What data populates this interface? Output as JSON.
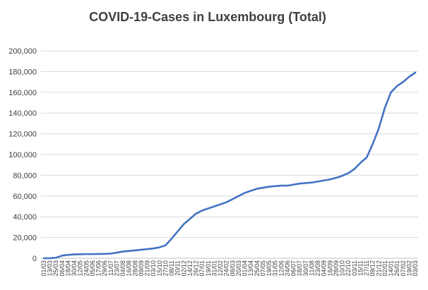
{
  "chart_data": {
    "type": "line",
    "title": "COVID-19-Cases in Luxembourg (Total)",
    "xlabel": "",
    "ylabel": "",
    "ylim": [
      0,
      200000
    ],
    "yticks": [
      0,
      20000,
      40000,
      60000,
      80000,
      100000,
      120000,
      140000,
      160000,
      180000,
      200000
    ],
    "ytick_labels": [
      "0",
      "20,000",
      "40,000",
      "60,000",
      "80,000",
      "100,000",
      "120,000",
      "140,000",
      "160,000",
      "180,000",
      "200,000"
    ],
    "grid": true,
    "legend": "none",
    "categories": [
      "01/03",
      "13/03",
      "25/03",
      "06/04",
      "18/04",
      "30/04",
      "12/05",
      "24/05",
      "05/06",
      "17/06",
      "29/06",
      "11/07",
      "23/07",
      "04/08",
      "16/08",
      "28/08",
      "09/09",
      "21/09",
      "03/10",
      "15/10",
      "27/10",
      "08/11",
      "20/11",
      "02/12",
      "14/12",
      "26/12",
      "07/01",
      "19/01",
      "31/01",
      "12/02",
      "24/02",
      "08/03",
      "20/03",
      "01/04",
      "13/04",
      "25/04",
      "07/05",
      "19/05",
      "31/05",
      "12/06",
      "24/06",
      "06/07",
      "18/07",
      "30/07",
      "11/08",
      "23/08",
      "04/09",
      "16/09",
      "28/09",
      "10/10",
      "22/10",
      "03/11",
      "15/11",
      "27/11",
      "09/12",
      "21/12",
      "02/01",
      "14/01",
      "26/01",
      "07/02",
      "19/02",
      "03/03"
    ],
    "xtick_labels": [
      "01/03",
      "13/03",
      "25/03",
      "06/04",
      "18/04",
      "30/04",
      "12/05",
      "24/05",
      "05/06",
      "17/06",
      "29/06",
      "11/07",
      "23/07",
      "04/08",
      "16/08",
      "28/08",
      "09/09",
      "21/09",
      "03/10",
      "15/10",
      "27/10",
      "08/11",
      "20/11",
      "02/12",
      "14/12",
      "26/12",
      "07/01",
      "19/01",
      "31/01",
      "12/02",
      "24/02",
      "08/03",
      "20/03",
      "01/04",
      "13/04",
      "25/04",
      "07/05",
      "19/05",
      "31/05",
      "12/06",
      "24/06",
      "06/07",
      "18/07",
      "30/07",
      "11/08",
      "23/08",
      "04/09",
      "16/09",
      "28/09",
      "10/10",
      "22/10",
      "03/11",
      "15/11",
      "27/11",
      "09/12",
      "21/12",
      "02/01",
      "14/01",
      "26/01",
      "07/02",
      "19/02",
      "03/03"
    ],
    "series": [
      {
        "color": "#4472c4",
        "values": [
          0,
          0,
          500,
          2500,
          3300,
          3700,
          3900,
          4000,
          4000,
          4100,
          4200,
          4500,
          5400,
          6500,
          7000,
          7600,
          8200,
          8800,
          9500,
          10500,
          12500,
          19000,
          26000,
          33000,
          38000,
          43000,
          46000,
          48000,
          50000,
          52000,
          54000,
          57000,
          60000,
          63000,
          65000,
          67000,
          68000,
          69000,
          69500,
          70000,
          70000,
          71000,
          72000,
          72500,
          73000,
          74000,
          75000,
          76000,
          77500,
          79500,
          82000,
          86000,
          92000,
          97000,
          110000,
          125000,
          145000,
          160000,
          166000,
          170000,
          175000,
          179000
        ]
      }
    ]
  }
}
